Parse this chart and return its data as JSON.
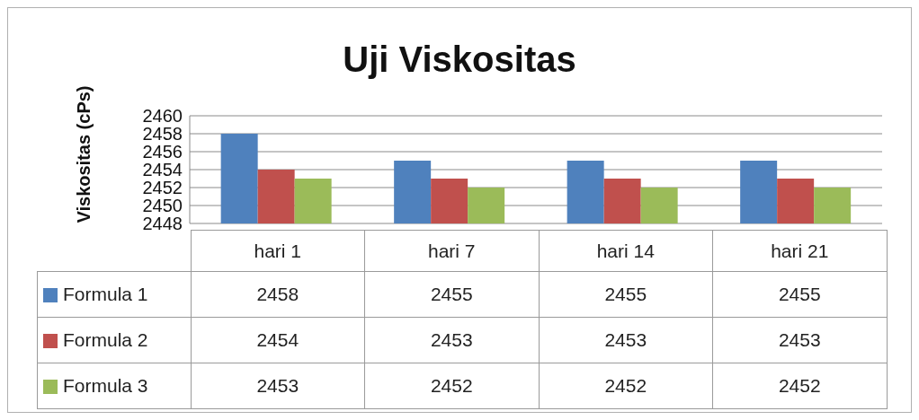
{
  "chart_data": {
    "type": "bar",
    "title": "Uji Viskositas",
    "ylabel": "Viskositas (cPs)",
    "categories": [
      "hari 1",
      "hari 7",
      "hari 14",
      "hari 21"
    ],
    "series": [
      {
        "name": "Formula 1",
        "color": "#4f81bd",
        "values": [
          2458,
          2455,
          2455,
          2455
        ]
      },
      {
        "name": "Formula 2",
        "color": "#c0504d",
        "values": [
          2454,
          2453,
          2453,
          2453
        ]
      },
      {
        "name": "Formula 3",
        "color": "#9bbb59",
        "values": [
          2453,
          2452,
          2452,
          2452
        ]
      }
    ],
    "ylim": [
      2448,
      2460
    ],
    "yticks": [
      2448,
      2450,
      2452,
      2454,
      2456,
      2458,
      2460
    ],
    "grid": "y",
    "legend": "bottom",
    "data_labels": true
  }
}
